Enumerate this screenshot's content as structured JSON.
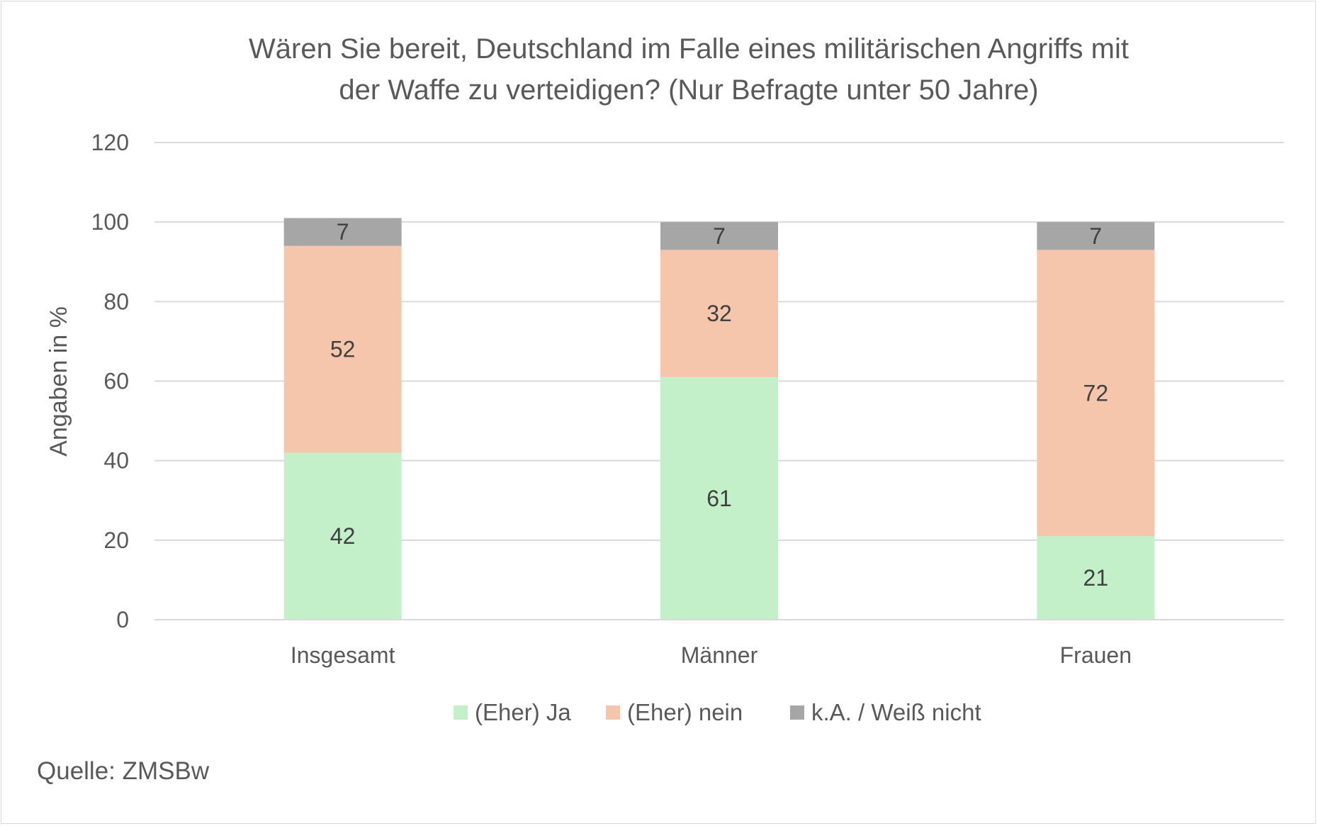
{
  "chart_data": {
    "type": "bar",
    "stacked": true,
    "title_lines": [
      "Wären Sie bereit, Deutschland im Falle eines militärischen Angriffs mit",
      "der Waffe zu verteidigen? (Nur Befragte unter 50 Jahre)"
    ],
    "xlabel": "",
    "ylabel": "Angaben in %",
    "ylim": [
      0,
      120
    ],
    "yticks": [
      0,
      20,
      40,
      60,
      80,
      100,
      120
    ],
    "grid": true,
    "legend_position": "bottom",
    "categories": [
      "Insgesamt",
      "Männer",
      "Frauen"
    ],
    "series": [
      {
        "name": "(Eher) Ja",
        "color": "#c3f0c8",
        "values": [
          42,
          61,
          21
        ]
      },
      {
        "name": "(Eher) nein",
        "color": "#f6c6ac",
        "values": [
          52,
          32,
          72
        ]
      },
      {
        "name": "k.A. / Weiß nicht",
        "color": "#a6a6a6",
        "values": [
          7,
          7,
          7
        ]
      }
    ]
  },
  "source": "Quelle: ZMSBw"
}
